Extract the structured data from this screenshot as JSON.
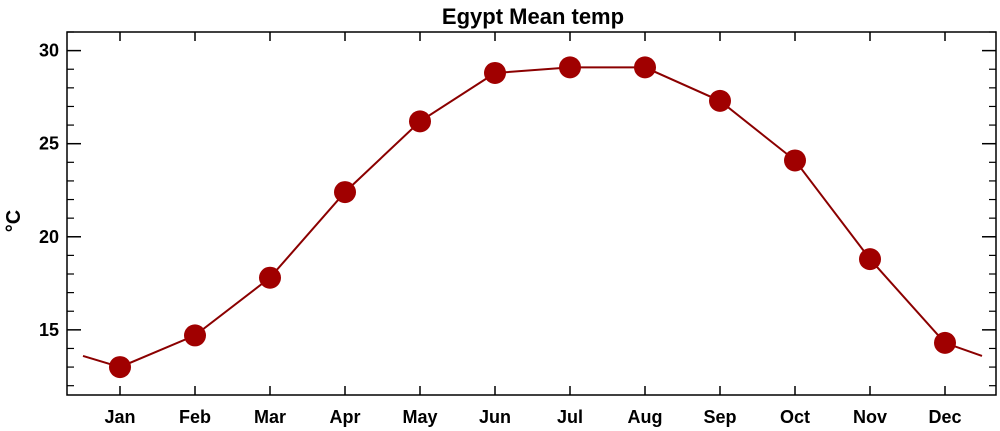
{
  "chart_data": {
    "type": "line",
    "title": "Egypt Mean temp",
    "xlabel": "",
    "ylabel": "°C",
    "categories": [
      "Jan",
      "Feb",
      "Mar",
      "Apr",
      "May",
      "Jun",
      "Jul",
      "Aug",
      "Sep",
      "Oct",
      "Nov",
      "Dec"
    ],
    "series": [
      {
        "values": [
          13.0,
          14.7,
          17.8,
          22.4,
          26.2,
          28.8,
          29.1,
          29.1,
          27.3,
          24.1,
          18.8,
          14.3
        ]
      }
    ],
    "edge_values": {
      "before_jan": 13.6,
      "after_dec": 13.6
    },
    "ylim": [
      11.5,
      31.0
    ],
    "yticks": [
      15,
      20,
      25,
      30
    ],
    "grid": false,
    "legend": "none",
    "colors": {
      "line": "#8b0000",
      "marker": "#a00000",
      "axis": "#000000"
    }
  }
}
